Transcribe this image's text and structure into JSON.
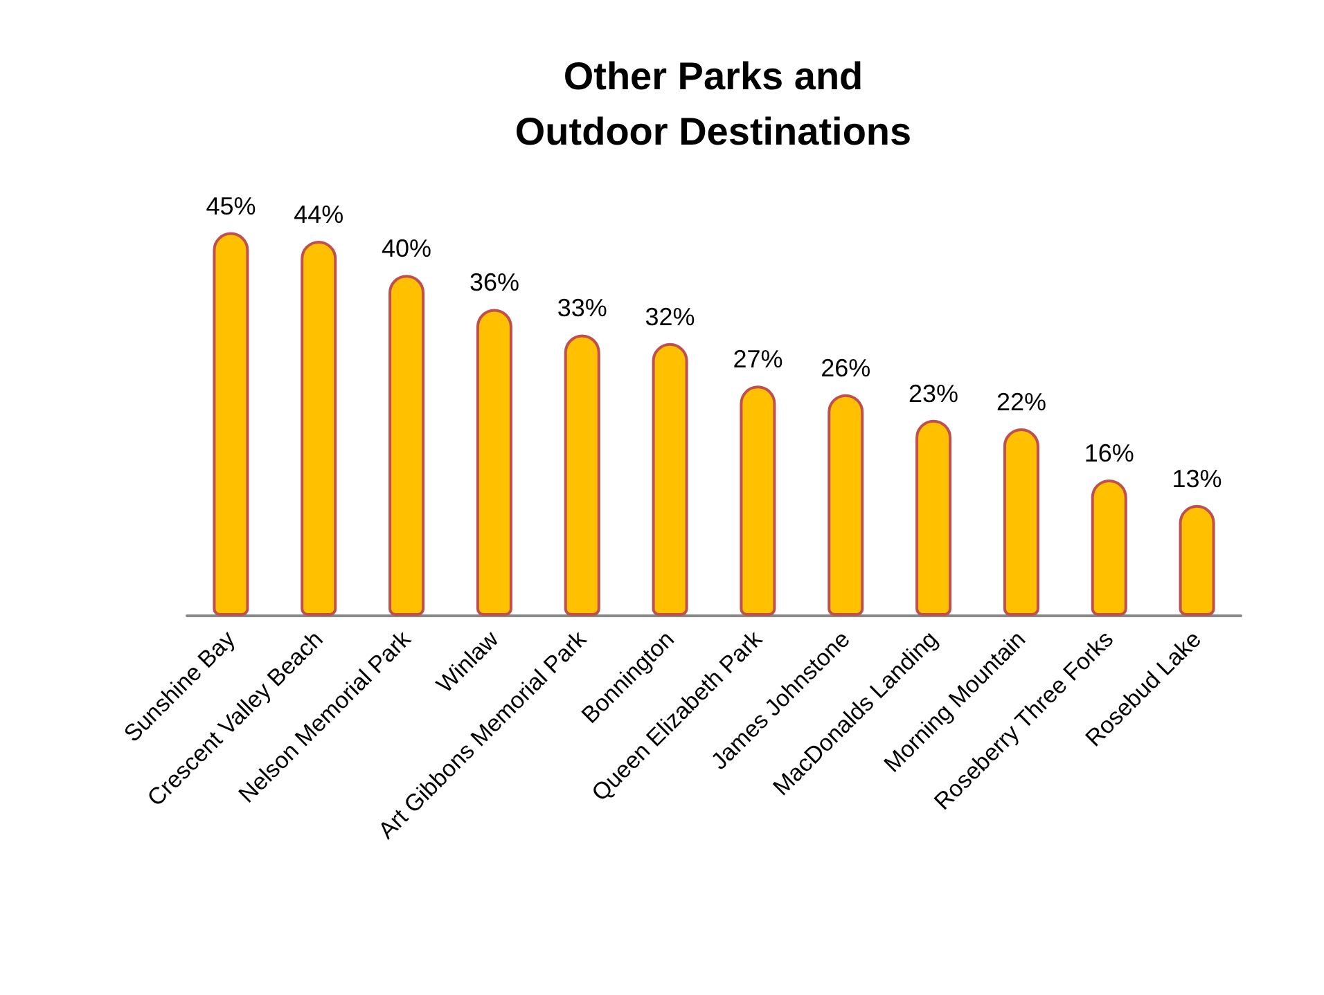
{
  "chart_data": {
    "type": "bar",
    "title": "Other Parks and\nOutdoor Destinations",
    "categories": [
      "Sunshine Bay",
      "Crescent Valley Beach",
      "Nelson Memorial Park",
      "Winlaw",
      "Art Gibbons Memorial Park",
      "Bonnington",
      "Queen Elizabeth Park",
      "James Johnstone",
      "MacDonalds Landing",
      "Morning Mountain",
      "Roseberry Three Forks",
      "Rosebud Lake"
    ],
    "values": [
      45,
      44,
      40,
      36,
      33,
      32,
      27,
      26,
      23,
      22,
      16,
      13
    ],
    "value_labels": [
      "45%",
      "44%",
      "40%",
      "36%",
      "33%",
      "32%",
      "27%",
      "26%",
      "23%",
      "22%",
      "16%",
      "13%"
    ],
    "color": "#ffc000"
  }
}
